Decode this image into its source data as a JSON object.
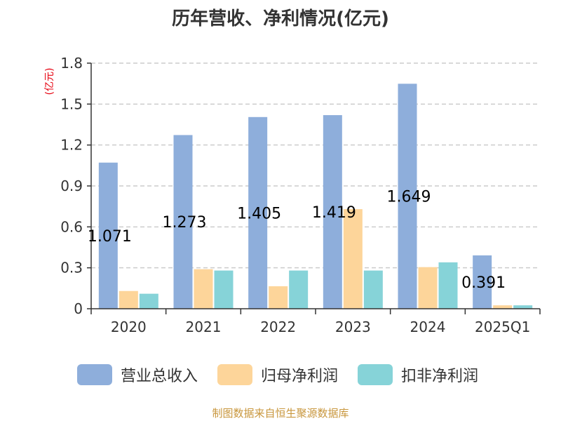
{
  "title": "历年营收、净利情况(亿元)",
  "source": "制图数据来自恒生聚源数据库",
  "colors": {
    "axis": "#333333",
    "grid": "#cccccc",
    "unit": "#e6000f"
  },
  "chart_data": {
    "type": "bar",
    "title": "历年营收、净利情况(亿元)",
    "ylabel": "(亿元)",
    "ylim": [
      0,
      1.8
    ],
    "yticks": [
      0,
      0.3,
      0.6,
      0.9,
      1.2,
      1.5,
      1.8
    ],
    "ytick_labels": [
      "0",
      "0.3",
      "0.6",
      "0.9",
      "1.2",
      "1.5",
      "1.8"
    ],
    "grid": true,
    "legend_position": "bottom",
    "categories": [
      "2020",
      "2021",
      "2022",
      "2023",
      "2024",
      "2025Q1"
    ],
    "series": [
      {
        "name": "营业总收入",
        "color": "#8eaedb",
        "values": [
          1.071,
          1.273,
          1.405,
          1.419,
          1.649,
          0.391
        ],
        "labels": [
          "1.071",
          "1.273",
          "1.405",
          "1.419",
          "1.649",
          "0.391"
        ]
      },
      {
        "name": "归母净利润",
        "color": "#fdd59a",
        "values": [
          0.13,
          0.29,
          0.165,
          0.73,
          0.305,
          0.025
        ]
      },
      {
        "name": "扣非净利润",
        "color": "#86d3d8",
        "values": [
          0.11,
          0.28,
          0.28,
          0.28,
          0.34,
          0.025
        ]
      }
    ]
  }
}
